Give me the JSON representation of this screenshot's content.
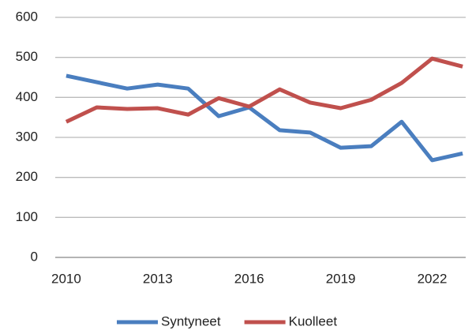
{
  "chart_data": {
    "type": "line",
    "x": [
      2010,
      2011,
      2012,
      2013,
      2014,
      2015,
      2016,
      2017,
      2018,
      2019,
      2020,
      2021,
      2022,
      2023
    ],
    "series": [
      {
        "name": "Syntyneet",
        "color": "#4a7ebf",
        "values": [
          454,
          438,
          422,
          432,
          422,
          353,
          375,
          318,
          312,
          274,
          278,
          339,
          243,
          260
        ]
      },
      {
        "name": "Kuolleet",
        "color": "#c0504d",
        "values": [
          339,
          375,
          371,
          373,
          357,
          398,
          377,
          420,
          387,
          373,
          394,
          436,
          497,
          477
        ]
      }
    ],
    "xlim": [
      2009.64,
      2023.1
    ],
    "xticks": [
      2010,
      2013,
      2016,
      2019,
      2022
    ],
    "ylim": [
      0,
      600
    ],
    "yticks": [
      0,
      100,
      200,
      300,
      400,
      500,
      600
    ],
    "grid": true,
    "legend": "bottom"
  }
}
